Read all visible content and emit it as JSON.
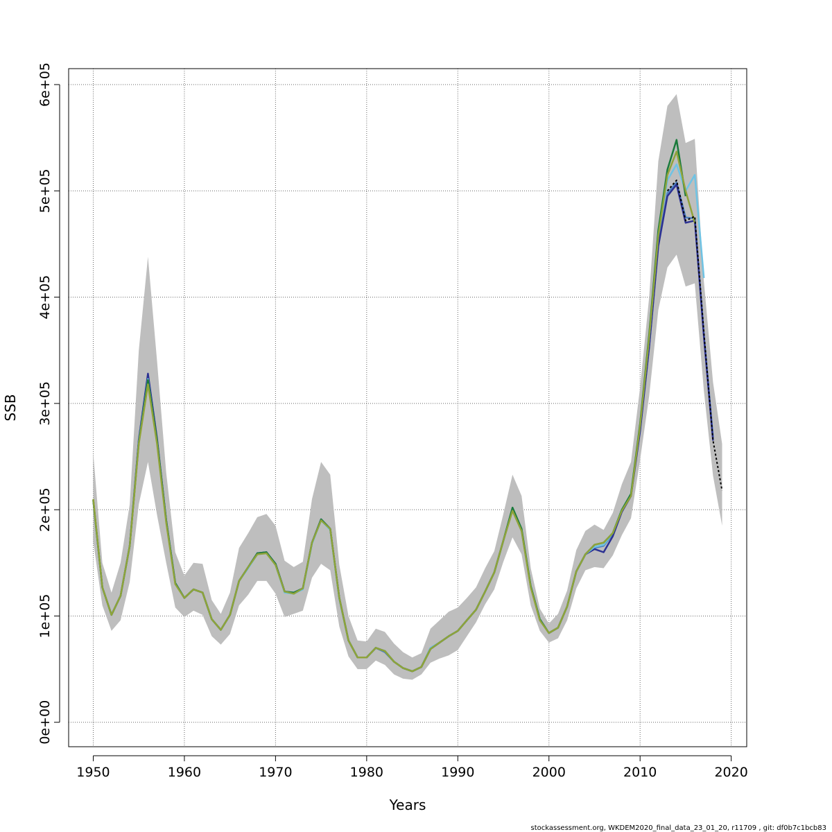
{
  "chart_data": {
    "type": "line",
    "xlabel": "Years",
    "ylabel": "SSB",
    "xlim": [
      1947.3,
      2021.7
    ],
    "ylim": [
      -23000,
      615000
    ],
    "x_ticks": [
      {
        "value": 1950,
        "label": "1950"
      },
      {
        "value": 1960,
        "label": "1960"
      },
      {
        "value": 1970,
        "label": "1970"
      },
      {
        "value": 1980,
        "label": "1980"
      },
      {
        "value": 1990,
        "label": "1990"
      },
      {
        "value": 2000,
        "label": "2000"
      },
      {
        "value": 2010,
        "label": "2010"
      },
      {
        "value": 2020,
        "label": "2020"
      }
    ],
    "y_ticks": [
      {
        "value": 0,
        "label": "0e+00"
      },
      {
        "value": 100000,
        "label": "1e+05"
      },
      {
        "value": 200000,
        "label": "2e+05"
      },
      {
        "value": 300000,
        "label": "3e+05"
      },
      {
        "value": 400000,
        "label": "4e+05"
      },
      {
        "value": 500000,
        "label": "5e+05"
      },
      {
        "value": 600000,
        "label": "6e+05"
      }
    ],
    "grid": true,
    "band": {
      "color": "#bebebe",
      "x": [
        1950,
        1951,
        1952,
        1953,
        1954,
        1955,
        1956,
        1957,
        1958,
        1959,
        1960,
        1961,
        1962,
        1963,
        1964,
        1965,
        1966,
        1967,
        1968,
        1969,
        1970,
        1971,
        1972,
        1973,
        1974,
        1975,
        1976,
        1977,
        1978,
        1979,
        1980,
        1981,
        1982,
        1983,
        1984,
        1985,
        1986,
        1987,
        1988,
        1989,
        1990,
        1991,
        1992,
        1993,
        1994,
        1995,
        1996,
        1997,
        1998,
        1999,
        2000,
        2001,
        2002,
        2003,
        2004,
        2005,
        2006,
        2007,
        2008,
        2009,
        2010,
        2011,
        2012,
        2013,
        2014,
        2015,
        2016,
        2017,
        2018,
        2019
      ],
      "upper": [
        253000,
        150000,
        122000,
        150000,
        205000,
        350000,
        438000,
        340000,
        235000,
        160000,
        138000,
        150000,
        149000,
        115000,
        102000,
        122000,
        164000,
        178000,
        193000,
        196000,
        185000,
        152000,
        146000,
        151000,
        210000,
        245000,
        233000,
        148000,
        100000,
        77000,
        76000,
        88000,
        85000,
        74000,
        66000,
        61000,
        65000,
        88000,
        96000,
        104000,
        108000,
        117000,
        127000,
        145000,
        161000,
        196000,
        233000,
        213000,
        145000,
        107000,
        93000,
        102000,
        124000,
        162000,
        180000,
        186000,
        181000,
        197000,
        224000,
        245000,
        315000,
        400000,
        528000,
        580000,
        591000,
        545000,
        549000,
        415000,
        320000,
        262000
      ],
      "lower": [
        170000,
        110000,
        86000,
        96000,
        132000,
        205000,
        245000,
        195000,
        150000,
        108000,
        99000,
        105000,
        101000,
        81000,
        73000,
        83000,
        110000,
        120000,
        133000,
        133000,
        121000,
        99000,
        102000,
        105000,
        136000,
        149000,
        143000,
        90000,
        62000,
        50000,
        50000,
        58000,
        54000,
        45000,
        41000,
        40000,
        45000,
        56000,
        60000,
        63000,
        68000,
        81000,
        94000,
        111000,
        125000,
        151000,
        174000,
        158000,
        110000,
        86000,
        75000,
        79000,
        96000,
        126000,
        143000,
        146000,
        145000,
        157000,
        176000,
        192000,
        247000,
        307000,
        388000,
        428000,
        440000,
        410000,
        413000,
        312000,
        232000,
        185000
      ]
    },
    "series": [
      {
        "color": "#4f82c0",
        "x": [
          1950,
          1951,
          1952,
          1953,
          1954,
          1955,
          1956,
          1957,
          1958,
          1959,
          1960,
          1961,
          1962,
          1963,
          1964,
          1965,
          1966,
          1967,
          1968,
          1969,
          1970,
          1971,
          1972,
          1973,
          1974,
          1975,
          1976,
          1977,
          1978,
          1979,
          1980,
          1981,
          1982,
          1983,
          1984,
          1985,
          1986,
          1987,
          1988,
          1989,
          1990,
          1991,
          1992,
          1993,
          1994,
          1995,
          1996,
          1997,
          1998,
          1999,
          2000,
          2001,
          2002,
          2003,
          2004,
          2005,
          2006,
          2007,
          2008,
          2009,
          2010,
          2011,
          2012,
          2013,
          2014,
          2015,
          2016,
          2017,
          2018
        ],
        "values": [
          209000,
          127000,
          101000,
          119000,
          166000,
          265000,
          327000,
          266000,
          190000,
          131000,
          117000,
          125000,
          122000,
          97000,
          87000,
          101000,
          133000,
          146000,
          159000,
          160000,
          149000,
          123000,
          122000,
          126000,
          169000,
          191000,
          182000,
          117000,
          77000,
          61000,
          61000,
          70000,
          66000,
          57000,
          51000,
          48000,
          52000,
          70000,
          75000,
          81000,
          86000,
          96000,
          106000,
          123000,
          141000,
          171000,
          200000,
          180000,
          128000,
          97000,
          84000,
          89000,
          109000,
          142000,
          158000,
          164000,
          166000,
          177000,
          199000,
          214000,
          275000,
          354000,
          450000,
          498000,
          508000,
          475000,
          474000,
          365000,
          268000
        ]
      },
      {
        "color": "#2c3192",
        "x": [
          1950,
          1951,
          1952,
          1953,
          1954,
          1955,
          1956,
          1957,
          1958,
          1959,
          1960,
          1961,
          1962,
          1963,
          1964,
          1965,
          1966,
          1967,
          1968,
          1969,
          1970,
          1971,
          1972,
          1973,
          1974,
          1975,
          1976,
          1977,
          1978,
          1979,
          1980,
          1981,
          1982,
          1983,
          1984,
          1985,
          1986,
          1987,
          1988,
          1989,
          1990,
          1991,
          1992,
          1993,
          1994,
          1995,
          1996,
          1997,
          1998,
          1999,
          2000,
          2001,
          2002,
          2003,
          2004,
          2005,
          2006,
          2007,
          2008,
          2009,
          2010,
          2011,
          2012,
          2013,
          2014,
          2015,
          2016,
          2017,
          2018
        ],
        "values": [
          209000,
          127000,
          101000,
          119000,
          166000,
          266000,
          328000,
          267000,
          190000,
          131000,
          117000,
          125000,
          122000,
          97000,
          87000,
          101000,
          133000,
          146000,
          159000,
          160000,
          149000,
          123000,
          121000,
          126000,
          169000,
          191000,
          182000,
          117000,
          77000,
          61000,
          61000,
          70000,
          67000,
          57000,
          51000,
          48000,
          52000,
          69000,
          75000,
          81000,
          86000,
          96000,
          106000,
          123000,
          141000,
          171000,
          201000,
          181000,
          128000,
          97000,
          84000,
          89000,
          109000,
          142000,
          158000,
          163000,
          160000,
          175000,
          198000,
          213000,
          274000,
          353000,
          448000,
          495000,
          506000,
          470000,
          472000,
          363000,
          265000
        ]
      },
      {
        "color": "#6fc3e4",
        "x": [
          1950,
          1951,
          1952,
          1953,
          1954,
          1955,
          1956,
          1957,
          1958,
          1959,
          1960,
          1961,
          1962,
          1963,
          1964,
          1965,
          1966,
          1967,
          1968,
          1969,
          1970,
          1971,
          1972,
          1973,
          1974,
          1975,
          1976,
          1977,
          1978,
          1979,
          1980,
          1981,
          1982,
          1983,
          1984,
          1985,
          1986,
          1987,
          1988,
          1989,
          1990,
          1991,
          1992,
          1993,
          1994,
          1995,
          1996,
          1997,
          1998,
          1999,
          2000,
          2001,
          2002,
          2003,
          2004,
          2005,
          2006,
          2007,
          2008,
          2009,
          2010,
          2011,
          2012,
          2013,
          2014,
          2015,
          2016,
          2017
        ],
        "values": [
          209000,
          127000,
          101000,
          119000,
          166000,
          264000,
          323000,
          264000,
          189000,
          131000,
          117000,
          125000,
          122000,
          97000,
          87000,
          101000,
          133000,
          145000,
          158000,
          159000,
          148000,
          122000,
          121000,
          125000,
          168000,
          190000,
          181000,
          116000,
          77000,
          61000,
          61000,
          70000,
          67000,
          57000,
          51000,
          48000,
          52000,
          70000,
          75000,
          81000,
          86000,
          96000,
          106000,
          123000,
          141000,
          171000,
          201000,
          181000,
          128000,
          97000,
          84000,
          89000,
          109000,
          142000,
          158000,
          165000,
          167000,
          178000,
          200000,
          215000,
          280000,
          362000,
          460000,
          510000,
          525000,
          500000,
          515000,
          418000
        ]
      },
      {
        "color": "#1a7a3c",
        "x": [
          1950,
          1951,
          1952,
          1953,
          1954,
          1955,
          1956,
          1957,
          1958,
          1959,
          1960,
          1961,
          1962,
          1963,
          1964,
          1965,
          1966,
          1967,
          1968,
          1969,
          1970,
          1971,
          1972,
          1973,
          1974,
          1975,
          1976,
          1977,
          1978,
          1979,
          1980,
          1981,
          1982,
          1983,
          1984,
          1985,
          1986,
          1987,
          1988,
          1989,
          1990,
          1991,
          1992,
          1993,
          1994,
          1995,
          1996,
          1997,
          1998,
          1999,
          2000,
          2001,
          2002,
          2003,
          2004,
          2005,
          2006,
          2007,
          2008,
          2009,
          2010,
          2011,
          2012,
          2013,
          2014,
          2015
        ],
        "values": [
          209000,
          127000,
          101000,
          119000,
          166000,
          263000,
          322000,
          265000,
          190000,
          131000,
          117000,
          125000,
          122000,
          97000,
          87000,
          101000,
          133000,
          146000,
          159000,
          160000,
          149000,
          123000,
          122000,
          126000,
          169000,
          191000,
          182000,
          117000,
          77000,
          61000,
          61000,
          70000,
          67000,
          57000,
          51000,
          48000,
          52000,
          69000,
          75000,
          81000,
          86000,
          96000,
          106000,
          123000,
          141000,
          171000,
          202000,
          182000,
          128000,
          97000,
          84000,
          89000,
          109000,
          142000,
          158000,
          167000,
          169000,
          178000,
          200000,
          215000,
          281000,
          365000,
          463000,
          520000,
          548000,
          495000
        ]
      },
      {
        "color": "#8fa33a",
        "x": [
          1950,
          1951,
          1952,
          1953,
          1954,
          1955,
          1956,
          1957,
          1958,
          1959,
          1960,
          1961,
          1962,
          1963,
          1964,
          1965,
          1966,
          1967,
          1968,
          1969,
          1970,
          1971,
          1972,
          1973,
          1974,
          1975,
          1976,
          1977,
          1978,
          1979,
          1980,
          1981,
          1982,
          1983,
          1984,
          1985,
          1986,
          1987,
          1988,
          1989,
          1990,
          1991,
          1992,
          1993,
          1994,
          1995,
          1996,
          1997,
          1998,
          1999,
          2000,
          2001,
          2002,
          2003,
          2004,
          2005,
          2006,
          2007,
          2008,
          2009,
          2010,
          2011,
          2012,
          2013,
          2014,
          2015,
          2016
        ],
        "values": [
          210000,
          127000,
          101000,
          119000,
          166000,
          262000,
          318000,
          262000,
          188000,
          130000,
          117000,
          125000,
          122000,
          97000,
          87000,
          101000,
          133000,
          146000,
          158000,
          159000,
          148000,
          123000,
          121000,
          126000,
          169000,
          190000,
          182000,
          117000,
          77000,
          61000,
          61000,
          70000,
          67000,
          57000,
          51000,
          48000,
          52000,
          69000,
          75000,
          81000,
          86000,
          96000,
          106000,
          123000,
          141000,
          171000,
          199000,
          180000,
          127000,
          96000,
          84000,
          89000,
          109000,
          142000,
          158000,
          167000,
          169000,
          178000,
          199000,
          213000,
          279000,
          362000,
          458000,
          515000,
          537000,
          500000,
          470000
        ]
      },
      {
        "color": "#000000",
        "dashed": true,
        "x": [
          2013,
          2014,
          2015,
          2016,
          2017,
          2018,
          2019
        ],
        "values": [
          500000,
          510000,
          472000,
          476000,
          367000,
          265000,
          218000
        ]
      }
    ]
  },
  "footer": {
    "text": "stockassessment.org, WKDEM2020_final_data_23_01_20, r11709 , git: df0b7c1bcb83"
  }
}
